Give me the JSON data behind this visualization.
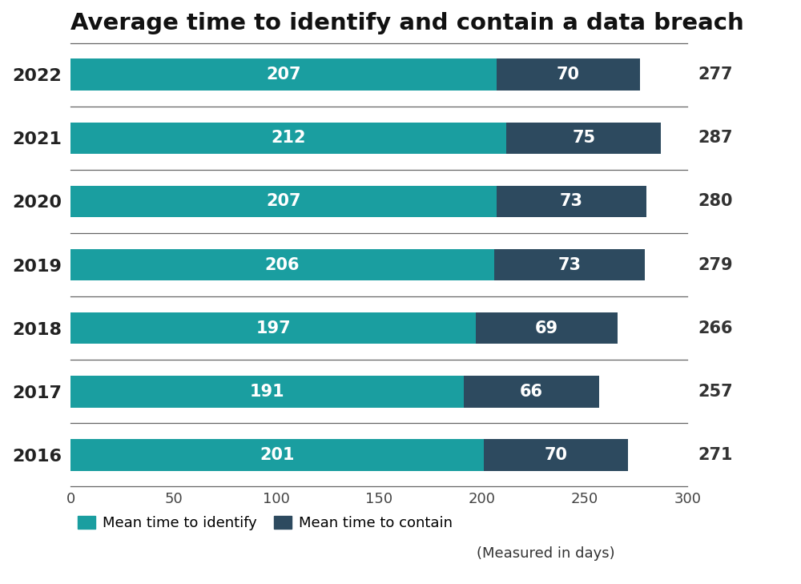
{
  "title": "Average time to identify and contain a data breach",
  "years": [
    "2022",
    "2021",
    "2020",
    "2019",
    "2018",
    "2017",
    "2016"
  ],
  "identify": [
    207,
    212,
    207,
    206,
    197,
    191,
    201
  ],
  "contain": [
    70,
    75,
    73,
    73,
    69,
    66,
    70
  ],
  "totals": [
    277,
    287,
    280,
    279,
    266,
    257,
    271
  ],
  "color_identify": "#1a9ea0",
  "color_contain": "#2d4a5f",
  "color_total_text": "#333333",
  "bar_height": 0.5,
  "xlim_max": 300,
  "xticks": [
    0,
    50,
    100,
    150,
    200,
    250,
    300
  ],
  "legend_identify": "Mean time to identify",
  "legend_contain": "Mean time to contain",
  "legend_measured": "(Measured in days)",
  "title_fontsize": 21,
  "year_fontsize": 16,
  "tick_fontsize": 13,
  "legend_fontsize": 13,
  "total_fontsize": 15,
  "bar_text_fontsize": 15,
  "background_color": "#ffffff",
  "separator_color": "#666666"
}
